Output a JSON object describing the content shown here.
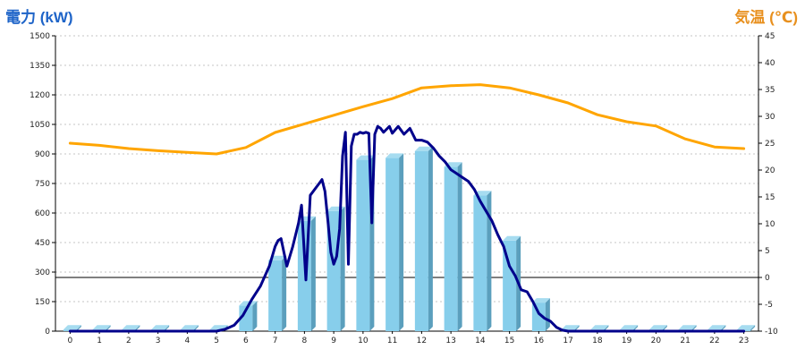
{
  "chart_data": {
    "type": "bar",
    "left_title": "電力 (kW)",
    "right_title": "気温 (℃)",
    "categories": [
      "0",
      "1",
      "2",
      "3",
      "4",
      "5",
      "6",
      "7",
      "8",
      "9",
      "10",
      "11",
      "12",
      "13",
      "14",
      "15",
      "16",
      "17",
      "18",
      "19",
      "20",
      "21",
      "22",
      "23"
    ],
    "left_axis": {
      "min": 0,
      "max": 1500,
      "ticks": [
        "0",
        "150",
        "300",
        "450",
        "600",
        "750",
        "900",
        "1050",
        "1200",
        "1350",
        "1500"
      ]
    },
    "right_axis": {
      "min": -10,
      "max": 45,
      "ticks": [
        "-10",
        "-5",
        "0",
        "5",
        "10",
        "15",
        "20",
        "25",
        "30",
        "35",
        "40",
        "45"
      ]
    },
    "grid": true,
    "series": [
      {
        "axis": "left",
        "kind": "bar",
        "color": "#87ceeb",
        "values": [
          8,
          8,
          8,
          8,
          8,
          8,
          130,
          360,
          560,
          610,
          870,
          880,
          915,
          835,
          690,
          460,
          145,
          8,
          8,
          8,
          8,
          8,
          8,
          8
        ]
      },
      {
        "axis": "left",
        "kind": "line",
        "color": "#00008b",
        "x": [
          0,
          4,
          5.0,
          5.3,
          5.6,
          5.9,
          6.2,
          6.5,
          6.8,
          7.0,
          7.1,
          7.2,
          7.4,
          7.6,
          7.8,
          7.9,
          8.05,
          8.2,
          8.4,
          8.5,
          8.6,
          8.7,
          8.8,
          8.9,
          9.0,
          9.1,
          9.2,
          9.3,
          9.4,
          9.5,
          9.6,
          9.7,
          9.8,
          9.9,
          10.0,
          10.1,
          10.2,
          10.3,
          10.4,
          10.5,
          10.6,
          10.7,
          10.8,
          10.9,
          11.0,
          11.2,
          11.4,
          11.6,
          11.8,
          12.0,
          12.2,
          12.4,
          12.6,
          12.8,
          13.0,
          13.2,
          13.4,
          13.6,
          13.8,
          14.0,
          14.2,
          14.4,
          14.6,
          14.8,
          15.0,
          15.2,
          15.4,
          15.6,
          15.8,
          16.0,
          16.2,
          16.4,
          16.6,
          16.8,
          17.0,
          18,
          23
        ],
        "y": [
          0,
          0,
          0,
          10,
          30,
          80,
          160,
          230,
          330,
          430,
          460,
          470,
          330,
          430,
          550,
          640,
          260,
          690,
          730,
          750,
          770,
          710,
          560,
          400,
          340,
          380,
          520,
          890,
          1010,
          340,
          940,
          1000,
          1000,
          1010,
          1005,
          1010,
          1005,
          550,
          1000,
          1040,
          1030,
          1010,
          1025,
          1040,
          1005,
          1040,
          1000,
          1030,
          970,
          970,
          960,
          930,
          890,
          860,
          820,
          800,
          780,
          760,
          720,
          660,
          610,
          560,
          490,
          430,
          330,
          280,
          210,
          200,
          150,
          90,
          65,
          50,
          20,
          5,
          0,
          0,
          0
        ]
      },
      {
        "axis": "right",
        "kind": "line",
        "color": "#ffa500",
        "x": [
          0,
          1,
          2,
          3,
          4,
          5,
          6,
          7,
          8,
          9,
          10,
          11,
          12,
          13,
          14,
          15,
          16,
          17,
          18,
          19,
          20,
          21,
          22,
          23
        ],
        "y": [
          25.0,
          24.6,
          24.0,
          23.6,
          23.3,
          23.0,
          24.2,
          27.0,
          28.6,
          30.2,
          31.8,
          33.3,
          35.3,
          35.7,
          35.9,
          35.3,
          34.0,
          32.5,
          30.3,
          29.0,
          28.2,
          25.8,
          24.3,
          24.0
        ]
      }
    ]
  }
}
